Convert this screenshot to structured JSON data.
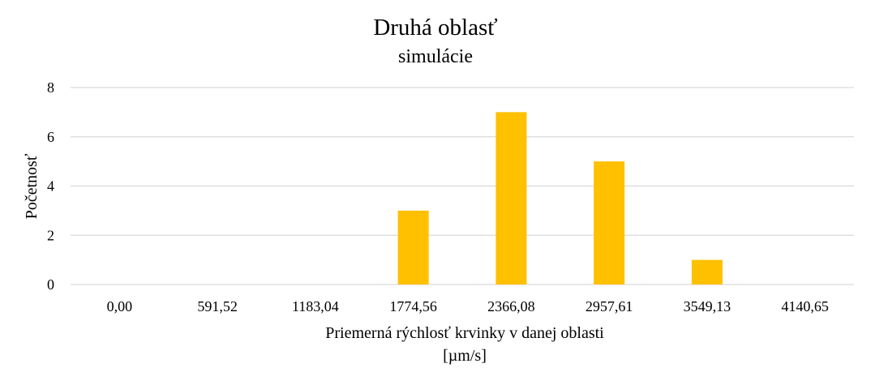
{
  "chart_data": {
    "type": "bar",
    "title": "Druhá oblasť",
    "subtitle": "simulácie",
    "xlabel": "Priemerná rýchlosť krvinky v danej oblasti",
    "xlabel_unit": "[µm/s]",
    "ylabel": "Početnosť",
    "categories": [
      "0,00",
      "591,52",
      "1183,04",
      "1774,56",
      "2366,08",
      "2957,61",
      "3549,13",
      "4140,65"
    ],
    "values": [
      0,
      0,
      0,
      3,
      7,
      5,
      1,
      0
    ],
    "ylim": [
      0,
      8
    ],
    "yticks": [
      0,
      2,
      4,
      6,
      8
    ],
    "grid": true,
    "legend": "none",
    "colors": {
      "bar": "#FFC000",
      "grid": "#D9D9D9"
    }
  }
}
